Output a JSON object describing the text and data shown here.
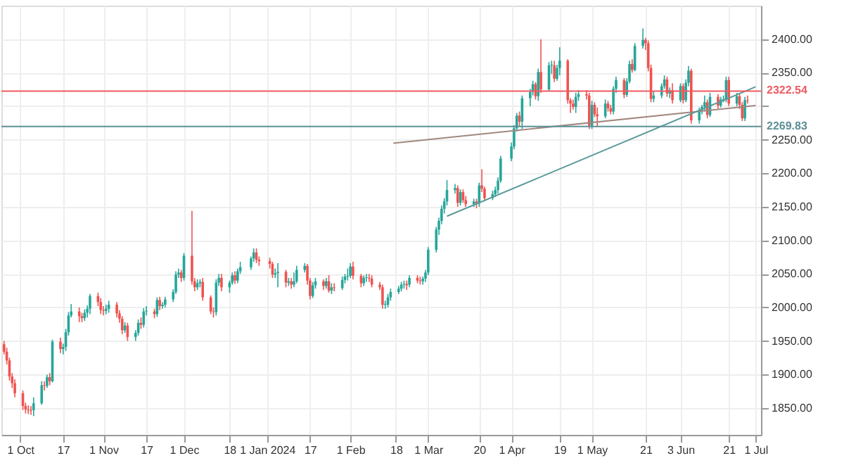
{
  "chart_data": {
    "type": "candlestick",
    "x": [
      "2023-09-25",
      "2023-09-26",
      "2023-09-27",
      "2023-09-28",
      "2023-09-29",
      "2023-10-02",
      "2023-10-03",
      "2023-10-04",
      "2023-10-05",
      "2023-10-06",
      "2023-10-09",
      "2023-10-10",
      "2023-10-11",
      "2023-10-12",
      "2023-10-13",
      "2023-10-16",
      "2023-10-17",
      "2023-10-18",
      "2023-10-19",
      "2023-10-20",
      "2023-10-23",
      "2023-10-24",
      "2023-10-25",
      "2023-10-26",
      "2023-10-27",
      "2023-10-30",
      "2023-10-31",
      "2023-11-01",
      "2023-11-02",
      "2023-11-03",
      "2023-11-06",
      "2023-11-07",
      "2023-11-08",
      "2023-11-09",
      "2023-11-10",
      "2023-11-13",
      "2023-11-14",
      "2023-11-15",
      "2023-11-16",
      "2023-11-17",
      "2023-11-20",
      "2023-11-21",
      "2023-11-22",
      "2023-11-23",
      "2023-11-24",
      "2023-11-27",
      "2023-11-28",
      "2023-11-29",
      "2023-11-30",
      "2023-12-01",
      "2023-12-04",
      "2023-12-05",
      "2023-12-06",
      "2023-12-07",
      "2023-12-08",
      "2023-12-11",
      "2023-12-12",
      "2023-12-13",
      "2023-12-14",
      "2023-12-15",
      "2023-12-18",
      "2023-12-19",
      "2023-12-20",
      "2023-12-21",
      "2023-12-22",
      "2023-12-26",
      "2023-12-27",
      "2023-12-28",
      "2023-12-29",
      "2024-01-02",
      "2024-01-03",
      "2024-01-04",
      "2024-01-05",
      "2024-01-08",
      "2024-01-09",
      "2024-01-10",
      "2024-01-11",
      "2024-01-12",
      "2024-01-15",
      "2024-01-16",
      "2024-01-17",
      "2024-01-18",
      "2024-01-19",
      "2024-01-22",
      "2024-01-23",
      "2024-01-24",
      "2024-01-25",
      "2024-01-26",
      "2024-01-29",
      "2024-01-30",
      "2024-01-31",
      "2024-02-01",
      "2024-02-02",
      "2024-02-05",
      "2024-02-06",
      "2024-02-07",
      "2024-02-08",
      "2024-02-09",
      "2024-02-12",
      "2024-02-13",
      "2024-02-14",
      "2024-02-15",
      "2024-02-16",
      "2024-02-19",
      "2024-02-20",
      "2024-02-21",
      "2024-02-22",
      "2024-02-23",
      "2024-02-26",
      "2024-02-27",
      "2024-02-28",
      "2024-02-29",
      "2024-03-01",
      "2024-03-04",
      "2024-03-05",
      "2024-03-06",
      "2024-03-07",
      "2024-03-08",
      "2024-03-11",
      "2024-03-12",
      "2024-03-13",
      "2024-03-14",
      "2024-03-15",
      "2024-03-18",
      "2024-03-19",
      "2024-03-20",
      "2024-03-21",
      "2024-03-22",
      "2024-03-25",
      "2024-03-26",
      "2024-03-27",
      "2024-03-28",
      "2024-04-01",
      "2024-04-02",
      "2024-04-03",
      "2024-04-04",
      "2024-04-05",
      "2024-04-08",
      "2024-04-09",
      "2024-04-10",
      "2024-04-11",
      "2024-04-12",
      "2024-04-15",
      "2024-04-16",
      "2024-04-17",
      "2024-04-18",
      "2024-04-19",
      "2024-04-22",
      "2024-04-23",
      "2024-04-24",
      "2024-04-25",
      "2024-04-26",
      "2024-04-29",
      "2024-04-30",
      "2024-05-01",
      "2024-05-02",
      "2024-05-03",
      "2024-05-06",
      "2024-05-07",
      "2024-05-08",
      "2024-05-09",
      "2024-05-10",
      "2024-05-13",
      "2024-05-14",
      "2024-05-15",
      "2024-05-16",
      "2024-05-17",
      "2024-05-20",
      "2024-05-21",
      "2024-05-22",
      "2024-05-23",
      "2024-05-24",
      "2024-05-27",
      "2024-05-28",
      "2024-05-29",
      "2024-05-30",
      "2024-05-31",
      "2024-06-03",
      "2024-06-04",
      "2024-06-05",
      "2024-06-06",
      "2024-06-07",
      "2024-06-10",
      "2024-06-11",
      "2024-06-12",
      "2024-06-13",
      "2024-06-14",
      "2024-06-17",
      "2024-06-18",
      "2024-06-19",
      "2024-06-20",
      "2024-06-21",
      "2024-06-24",
      "2024-06-25",
      "2024-06-26",
      "2024-06-27",
      "2024-06-28"
    ],
    "ohlc": [
      [
        1945,
        1950,
        1930,
        1934
      ],
      [
        1934,
        1940,
        1915,
        1921
      ],
      [
        1921,
        1925,
        1891,
        1897
      ],
      [
        1897,
        1902,
        1880,
        1887
      ],
      [
        1887,
        1893,
        1866,
        1872
      ],
      [
        1872,
        1876,
        1847,
        1853
      ],
      [
        1853,
        1858,
        1842,
        1848
      ],
      [
        1848,
        1854,
        1841,
        1847
      ],
      [
        1847,
        1853,
        1840,
        1846
      ],
      [
        1847,
        1866,
        1838,
        1857
      ],
      [
        1857,
        1890,
        1855,
        1884
      ],
      [
        1884,
        1890,
        1876,
        1883
      ],
      [
        1883,
        1900,
        1880,
        1896
      ],
      [
        1896,
        1902,
        1884,
        1890
      ],
      [
        1890,
        1952,
        1888,
        1949
      ],
      [
        1949,
        1955,
        1932,
        1938
      ],
      [
        1938,
        1946,
        1930,
        1941
      ],
      [
        1941,
        1968,
        1935,
        1963
      ],
      [
        1963,
        1993,
        1958,
        1988
      ],
      [
        1988,
        2005,
        1985,
        1994
      ],
      [
        1994,
        2000,
        1978,
        1987
      ],
      [
        1987,
        1992,
        1978,
        1984
      ],
      [
        1984,
        1997,
        1980,
        1992
      ],
      [
        1992,
        2003,
        1985,
        1998
      ],
      [
        1998,
        2020,
        1990,
        2017
      ],
      [
        2017,
        2022,
        2002,
        2008
      ],
      [
        2008,
        2014,
        1990,
        1996
      ],
      [
        1996,
        2002,
        1988,
        1995
      ],
      [
        1995,
        2004,
        1990,
        1998
      ],
      [
        1998,
        2010,
        1992,
        2004
      ],
      [
        2004,
        2008,
        1985,
        1991
      ],
      [
        1991,
        1996,
        1977,
        1983
      ],
      [
        1983,
        1987,
        1960,
        1966
      ],
      [
        1966,
        1978,
        1962,
        1973
      ],
      [
        1973,
        1977,
        1950,
        1956
      ],
      [
        1956,
        1966,
        1950,
        1962
      ],
      [
        1962,
        1982,
        1958,
        1977
      ],
      [
        1977,
        1985,
        1968,
        1974
      ],
      [
        1974,
        1999,
        1970,
        1994
      ],
      [
        1994,
        2002,
        1988,
        1995
      ],
      [
        1994,
        1998,
        1984,
        1990
      ],
      [
        1990,
        2015,
        1986,
        2011
      ],
      [
        2011,
        2016,
        1996,
        2002
      ],
      [
        2002,
        2008,
        1998,
        2004
      ],
      [
        2004,
        2016,
        2000,
        2012
      ],
      [
        2012,
        2027,
        2008,
        2023
      ],
      [
        2023,
        2054,
        2020,
        2049
      ],
      [
        2049,
        2058,
        2044,
        2052
      ],
      [
        2052,
        2056,
        2038,
        2044
      ],
      [
        2044,
        2081,
        2040,
        2077
      ],
      [
        2077,
        2144,
        2034,
        2039
      ],
      [
        2039,
        2044,
        2024,
        2030
      ],
      [
        2030,
        2042,
        2026,
        2036
      ],
      [
        2036,
        2042,
        2030,
        2038
      ],
      [
        2038,
        2044,
        2010,
        2015
      ],
      [
        2015,
        2018,
        1990,
        1994
      ],
      [
        1994,
        2000,
        1985,
        1993
      ],
      [
        1993,
        2042,
        1988,
        2037
      ],
      [
        2037,
        2050,
        2032,
        2044
      ],
      [
        2044,
        2050,
        2024,
        2030
      ],
      [
        2030,
        2040,
        2022,
        2037
      ],
      [
        2037,
        2052,
        2034,
        2048
      ],
      [
        2048,
        2054,
        2035,
        2040
      ],
      [
        2040,
        2058,
        2036,
        2054
      ],
      [
        2054,
        2068,
        2050,
        2060
      ],
      [
        2060,
        2076,
        2056,
        2073
      ],
      [
        2073,
        2088,
        2068,
        2082
      ],
      [
        2082,
        2088,
        2066,
        2071
      ],
      [
        2071,
        2076,
        2062,
        2069
      ],
      [
        2069,
        2074,
        2058,
        2065
      ],
      [
        2065,
        2068,
        2044,
        2049
      ],
      [
        2049,
        2058,
        2044,
        2051
      ],
      [
        2051,
        2066,
        2030,
        2053
      ],
      [
        2053,
        2056,
        2030,
        2037
      ],
      [
        2037,
        2044,
        2032,
        2039
      ],
      [
        2039,
        2044,
        2028,
        2034
      ],
      [
        2034,
        2052,
        2030,
        2039
      ],
      [
        2039,
        2062,
        2036,
        2056
      ],
      [
        2056,
        2066,
        2052,
        2062
      ],
      [
        2062,
        2065,
        2034,
        2040
      ],
      [
        2040,
        2044,
        2012,
        2017
      ],
      [
        2017,
        2038,
        2014,
        2033
      ],
      [
        2033,
        2044,
        2028,
        2039
      ],
      [
        2039,
        2042,
        2026,
        2032
      ],
      [
        2032,
        2044,
        2028,
        2039
      ],
      [
        2039,
        2048,
        2022,
        2025
      ],
      [
        2025,
        2036,
        2020,
        2030
      ],
      [
        2030,
        2036,
        2024,
        2029
      ],
      [
        2029,
        2046,
        2026,
        2041
      ],
      [
        2041,
        2050,
        2036,
        2046
      ],
      [
        2046,
        2058,
        2040,
        2047
      ],
      [
        2047,
        2066,
        2044,
        2061
      ],
      [
        2061,
        2068,
        2042,
        2047
      ],
      [
        2047,
        2050,
        2030,
        2036
      ],
      [
        2036,
        2048,
        2032,
        2044
      ],
      [
        2044,
        2050,
        2038,
        2045
      ],
      [
        2044,
        2050,
        2038,
        2043
      ],
      [
        2043,
        2048,
        2030,
        2034
      ],
      [
        2034,
        2038,
        2026,
        2030
      ],
      [
        2030,
        2034,
        1998,
        2004
      ],
      [
        2004,
        2010,
        1998,
        2005
      ],
      [
        2004,
        2020,
        2000,
        2015
      ],
      [
        2015,
        2028,
        2010,
        2023
      ],
      [
        2023,
        2032,
        2020,
        2028
      ],
      [
        2028,
        2038,
        2024,
        2034
      ],
      [
        2034,
        2040,
        2028,
        2035
      ],
      [
        2035,
        2040,
        2026,
        2033
      ],
      [
        2034,
        2048,
        2030,
        2044
      ],
      [
        2044,
        2048,
        2036,
        2040
      ],
      [
        2040,
        2046,
        2034,
        2039
      ],
      [
        2039,
        2046,
        2034,
        2043
      ],
      [
        2043,
        2056,
        2038,
        2052
      ],
      [
        2052,
        2090,
        2048,
        2086
      ],
      [
        2086,
        2120,
        2082,
        2116
      ],
      [
        2116,
        2134,
        2108,
        2129
      ],
      [
        2129,
        2152,
        2124,
        2147
      ],
      [
        2147,
        2163,
        2140,
        2158
      ],
      [
        2158,
        2190,
        2152,
        2175
      ],
      [
        2175,
        2184,
        2170,
        2178
      ],
      [
        2178,
        2182,
        2150,
        2156
      ],
      [
        2156,
        2176,
        2152,
        2172
      ],
      [
        2172,
        2176,
        2156,
        2160
      ],
      [
        2160,
        2166,
        2150,
        2154
      ],
      [
        2154,
        2162,
        2150,
        2158
      ],
      [
        2158,
        2162,
        2148,
        2155
      ],
      [
        2155,
        2186,
        2150,
        2182
      ],
      [
        2182,
        2206,
        2172,
        2177
      ],
      [
        2177,
        2180,
        2158,
        2163
      ],
      [
        2163,
        2174,
        2160,
        2169
      ],
      [
        2169,
        2180,
        2165,
        2175
      ],
      [
        2175,
        2194,
        2170,
        2189
      ],
      [
        2189,
        2226,
        2186,
        2222
      ],
      [
        2222,
        2246,
        2218,
        2240
      ],
      [
        2240,
        2272,
        2236,
        2267
      ],
      [
        2267,
        2290,
        2262,
        2286
      ],
      [
        2286,
        2292,
        2270,
        2277
      ],
      [
        2277,
        2316,
        2266,
        2312
      ],
      [
        2312,
        2326,
        2300,
        2321
      ],
      [
        2321,
        2338,
        2316,
        2333
      ],
      [
        2333,
        2336,
        2310,
        2315
      ],
      [
        2315,
        2356,
        2308,
        2351
      ],
      [
        2351,
        2400,
        2320,
        2325
      ],
      [
        2325,
        2366,
        2322,
        2361
      ],
      [
        2361,
        2368,
        2348,
        2362
      ],
      [
        2361,
        2368,
        2336,
        2341
      ],
      [
        2341,
        2362,
        2338,
        2357
      ],
      [
        2357,
        2388,
        2346,
        2368
      ],
      [
        2368,
        2370,
        2304,
        2309
      ],
      [
        2309,
        2312,
        2290,
        2304
      ],
      [
        2304,
        2310,
        2295,
        2299
      ],
      [
        2299,
        2320,
        2290,
        2314
      ],
      [
        2314,
        2324,
        2308,
        2318
      ],
      [
        2318,
        2324,
        2310,
        2316
      ],
      [
        2316,
        2320,
        2266,
        2271
      ],
      [
        2271,
        2308,
        2266,
        2302
      ],
      [
        2302,
        2306,
        2284,
        2288
      ],
      [
        2288,
        2298,
        2270,
        2285
      ],
      [
        2285,
        2310,
        2282,
        2304
      ],
      [
        2304,
        2308,
        2292,
        2297
      ],
      [
        2297,
        2302,
        2288,
        2292
      ],
      [
        2292,
        2330,
        2288,
        2326
      ],
      [
        2326,
        2344,
        2320,
        2339
      ],
      [
        2339,
        2342,
        2312,
        2317
      ],
      [
        2317,
        2342,
        2314,
        2337
      ],
      [
        2337,
        2368,
        2334,
        2363
      ],
      [
        2363,
        2370,
        2350,
        2354
      ],
      [
        2354,
        2394,
        2352,
        2390
      ],
      [
        2390,
        2416,
        2386,
        2399
      ],
      [
        2399,
        2402,
        2384,
        2394
      ],
      [
        2394,
        2398,
        2352,
        2357
      ],
      [
        2357,
        2362,
        2306,
        2311
      ],
      [
        2311,
        2322,
        2306,
        2316
      ],
      [
        2316,
        2334,
        2312,
        2330
      ],
      [
        2330,
        2346,
        2326,
        2340
      ],
      [
        2340,
        2344,
        2314,
        2319
      ],
      [
        2319,
        2328,
        2312,
        2324
      ],
      [
        2324,
        2334,
        2304,
        2309
      ],
      [
        2309,
        2334,
        2306,
        2330
      ],
      [
        2330,
        2334,
        2304,
        2309
      ],
      [
        2309,
        2340,
        2306,
        2335
      ],
      [
        2335,
        2360,
        2330,
        2353
      ],
      [
        2353,
        2356,
        2274,
        2279
      ],
      [
        2279,
        2298,
        2274,
        2294
      ],
      [
        2294,
        2302,
        2288,
        2299
      ],
      [
        2299,
        2316,
        2292,
        2306
      ],
      [
        2306,
        2310,
        2282,
        2287
      ],
      [
        2287,
        2320,
        2284,
        2314
      ],
      [
        2314,
        2318,
        2296,
        2301
      ],
      [
        2301,
        2314,
        2298,
        2310
      ],
      [
        2310,
        2316,
        2306,
        2311
      ],
      [
        2310,
        2344,
        2306,
        2339
      ],
      [
        2339,
        2344,
        2300,
        2304
      ],
      [
        2304,
        2320,
        2300,
        2315
      ],
      [
        2315,
        2318,
        2296,
        2302
      ],
      [
        2302,
        2306,
        2278,
        2282
      ],
      [
        2282,
        2314,
        2278,
        2309
      ],
      [
        2309,
        2316,
        2304,
        2308
      ]
    ],
    "series": [
      {
        "type": "line",
        "color": "#a1887f",
        "x": [
          "2024-02-17",
          "2024-07-01"
        ],
        "values": [
          2245,
          2301
        ]
      },
      {
        "type": "line",
        "color": "#5b9a9a",
        "x": [
          "2024-03-08",
          "2024-07-01"
        ],
        "values": [
          2136,
          2329
        ]
      }
    ],
    "ref_lines": [
      {
        "axis": "y",
        "value": 2322.54,
        "label": "2322.54",
        "color": "#ef5a62"
      },
      {
        "axis": "y",
        "value": 2269.83,
        "label": "2269.83",
        "color": "#5b8f94"
      }
    ],
    "xlim": [
      "2023-09-24",
      "2024-07-03"
    ],
    "xticks": [
      {
        "value": "2023-10-01",
        "label": "1 Oct"
      },
      {
        "value": "2023-10-17",
        "label": "17"
      },
      {
        "value": "2023-11-01",
        "label": "1 Nov"
      },
      {
        "value": "2023-11-17",
        "label": "17"
      },
      {
        "value": "2023-12-01",
        "label": "1 Dec"
      },
      {
        "value": "2023-12-18",
        "label": "18"
      },
      {
        "value": "2024-01-01",
        "label": "1 Jan 2024"
      },
      {
        "value": "2024-01-17",
        "label": "17"
      },
      {
        "value": "2024-02-01",
        "label": "1 Feb"
      },
      {
        "value": "2024-02-18",
        "label": "18"
      },
      {
        "value": "2024-03-01",
        "label": "1 Mar"
      },
      {
        "value": "2024-03-20",
        "label": "20"
      },
      {
        "value": "2024-04-01",
        "label": "1 Apr"
      },
      {
        "value": "2024-04-19",
        "label": "19"
      },
      {
        "value": "2024-05-01",
        "label": "1 May"
      },
      {
        "value": "2024-05-21",
        "label": "21"
      },
      {
        "value": "2024-06-03",
        "label": "3 Jun"
      },
      {
        "value": "2024-06-21",
        "label": "21"
      },
      {
        "value": "2024-07-01",
        "label": "1 Jul"
      }
    ],
    "ylim": [
      1810,
      2450
    ],
    "yticks": [
      {
        "value": 1850,
        "label": "1850.00"
      },
      {
        "value": 1900,
        "label": "1900.00"
      },
      {
        "value": 1950,
        "label": "1950.00"
      },
      {
        "value": 2000,
        "label": "2000.00"
      },
      {
        "value": 2050,
        "label": "2050.00"
      },
      {
        "value": 2100,
        "label": "2100.00"
      },
      {
        "value": 2150,
        "label": "2150.00"
      },
      {
        "value": 2200,
        "label": "2200.00"
      },
      {
        "value": 2250,
        "label": "2250.00"
      },
      {
        "value": 2300,
        "label": null
      },
      {
        "value": 2350,
        "label": "2350.00"
      },
      {
        "value": 2400,
        "label": "2400.00"
      }
    ],
    "grid": true
  }
}
